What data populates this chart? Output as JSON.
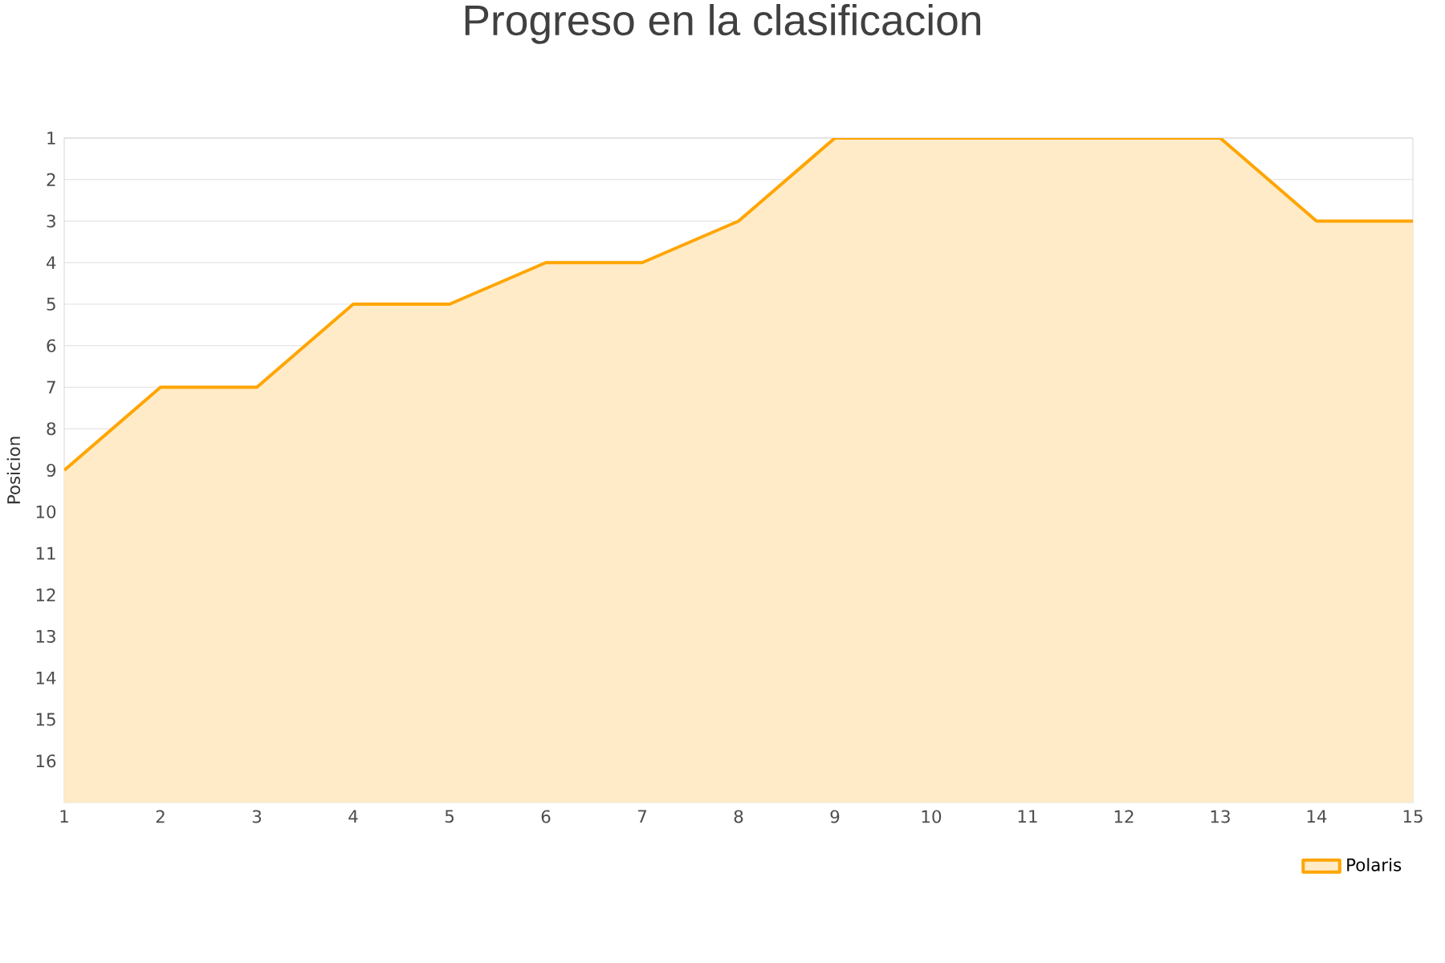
{
  "chart_data": {
    "type": "area",
    "title": "Progreso en la clasificacion",
    "ylabel": "Posicion",
    "x": [
      1,
      2,
      3,
      4,
      5,
      6,
      7,
      8,
      9,
      10,
      11,
      12,
      13,
      14,
      15
    ],
    "series": [
      {
        "name": "Polaris",
        "color": "#ffa500",
        "values": [
          9,
          7,
          7,
          5,
          5,
          4,
          4,
          3,
          1,
          1,
          1,
          1,
          1,
          3,
          3
        ]
      }
    ],
    "xlim": [
      1,
      15
    ],
    "xticks": [
      1,
      2,
      3,
      4,
      5,
      6,
      7,
      8,
      9,
      10,
      11,
      12,
      13,
      14,
      15
    ],
    "ylim": [
      17,
      1
    ],
    "yticks": [
      1,
      2,
      3,
      4,
      5,
      6,
      7,
      8,
      9,
      10,
      11,
      12,
      13,
      14,
      15,
      16
    ],
    "grid": "y",
    "legend": "bottom right"
  }
}
